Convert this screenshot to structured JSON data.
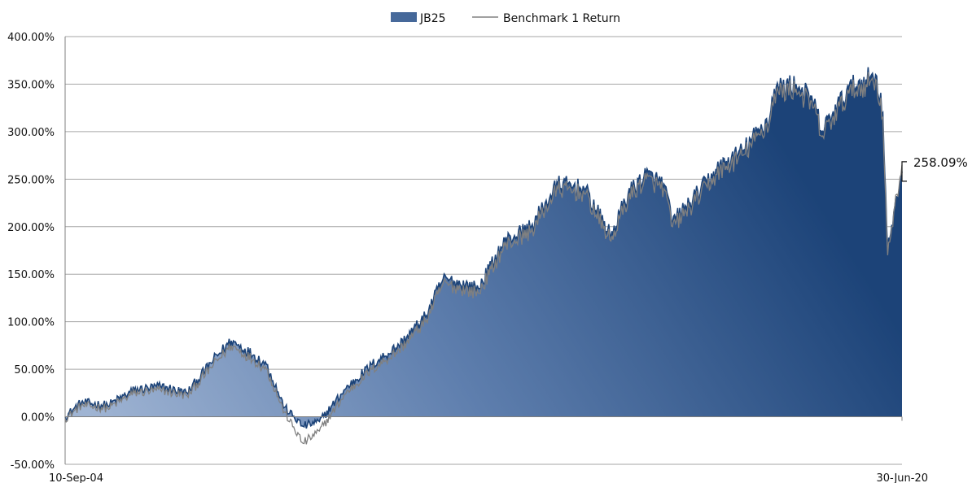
{
  "chart_data": {
    "type": "area",
    "title": "",
    "xlabel": "",
    "ylabel": "",
    "x_tick_labels": [
      "10-Sep-04",
      "30-Jun-20"
    ],
    "y_tick_labels": [
      "-50.00%",
      "0.00%",
      "50.00%",
      "100.00%",
      "150.00%",
      "200.00%",
      "250.00%",
      "300.00%",
      "350.00%",
      "400.00%"
    ],
    "ylim": [
      -50,
      400
    ],
    "xlim": [
      "2004-09-10",
      "2020-06-30"
    ],
    "grid": "horizontal",
    "legend_position": "top-center",
    "end_label": "258.09%",
    "colors": {
      "area_top": "#1c4378",
      "area_light": "#9fb4d3",
      "benchmark_line": "#808080",
      "grid": "#a6a6a6",
      "axis": "#7f7f7f"
    },
    "series": [
      {
        "name": "JB25",
        "style": "area",
        "x": [
          "2004-09-10",
          "2004-12-31",
          "2005-06-30",
          "2005-12-31",
          "2006-06-30",
          "2006-12-31",
          "2007-06-30",
          "2007-10-31",
          "2008-03-31",
          "2008-06-30",
          "2008-10-31",
          "2009-03-09",
          "2009-06-30",
          "2009-12-31",
          "2010-06-30",
          "2010-12-31",
          "2011-06-30",
          "2011-10-31",
          "2012-06-30",
          "2012-12-31",
          "2013-06-30",
          "2013-12-31",
          "2014-06-30",
          "2014-12-31",
          "2015-04-30",
          "2015-08-31",
          "2015-12-31",
          "2016-02-29",
          "2016-06-30",
          "2016-12-31",
          "2017-06-30",
          "2017-12-31",
          "2018-01-31",
          "2018-06-30",
          "2018-10-31",
          "2018-12-24",
          "2019-06-30",
          "2019-12-31",
          "2020-02-19",
          "2020-03-23",
          "2020-06-30"
        ],
        "values": [
          0,
          15,
          12,
          28,
          32,
          25,
          60,
          80,
          65,
          55,
          10,
          -10,
          -5,
          30,
          55,
          75,
          105,
          145,
          135,
          185,
          200,
          245,
          240,
          190,
          235,
          255,
          245,
          205,
          225,
          260,
          280,
          315,
          345,
          350,
          330,
          300,
          345,
          360,
          320,
          175,
          258.09
        ]
      },
      {
        "name": "Benchmark 1 Return",
        "style": "line",
        "x": [
          "2004-09-10",
          "2004-12-31",
          "2005-06-30",
          "2005-12-31",
          "2006-06-30",
          "2006-12-31",
          "2007-06-30",
          "2007-10-31",
          "2008-03-31",
          "2008-06-30",
          "2008-10-31",
          "2009-03-09",
          "2009-06-30",
          "2009-12-31",
          "2010-06-30",
          "2010-12-31",
          "2011-06-30",
          "2011-10-31",
          "2012-06-30",
          "2012-12-31",
          "2013-06-30",
          "2013-12-31",
          "2014-06-30",
          "2014-12-31",
          "2015-04-30",
          "2015-08-31",
          "2015-12-31",
          "2016-02-29",
          "2016-06-30",
          "2016-12-31",
          "2017-06-30",
          "2017-12-31",
          "2018-01-31",
          "2018-06-30",
          "2018-10-31",
          "2018-12-24",
          "2019-06-30",
          "2019-12-31",
          "2020-02-19",
          "2020-03-23",
          "2020-06-30"
        ],
        "values": [
          -2,
          12,
          9,
          25,
          28,
          22,
          55,
          75,
          60,
          50,
          5,
          -28,
          -15,
          25,
          50,
          70,
          100,
          140,
          130,
          180,
          195,
          240,
          235,
          185,
          230,
          250,
          240,
          200,
          220,
          255,
          275,
          310,
          340,
          345,
          325,
          295,
          340,
          355,
          315,
          170,
          265
        ]
      }
    ]
  }
}
